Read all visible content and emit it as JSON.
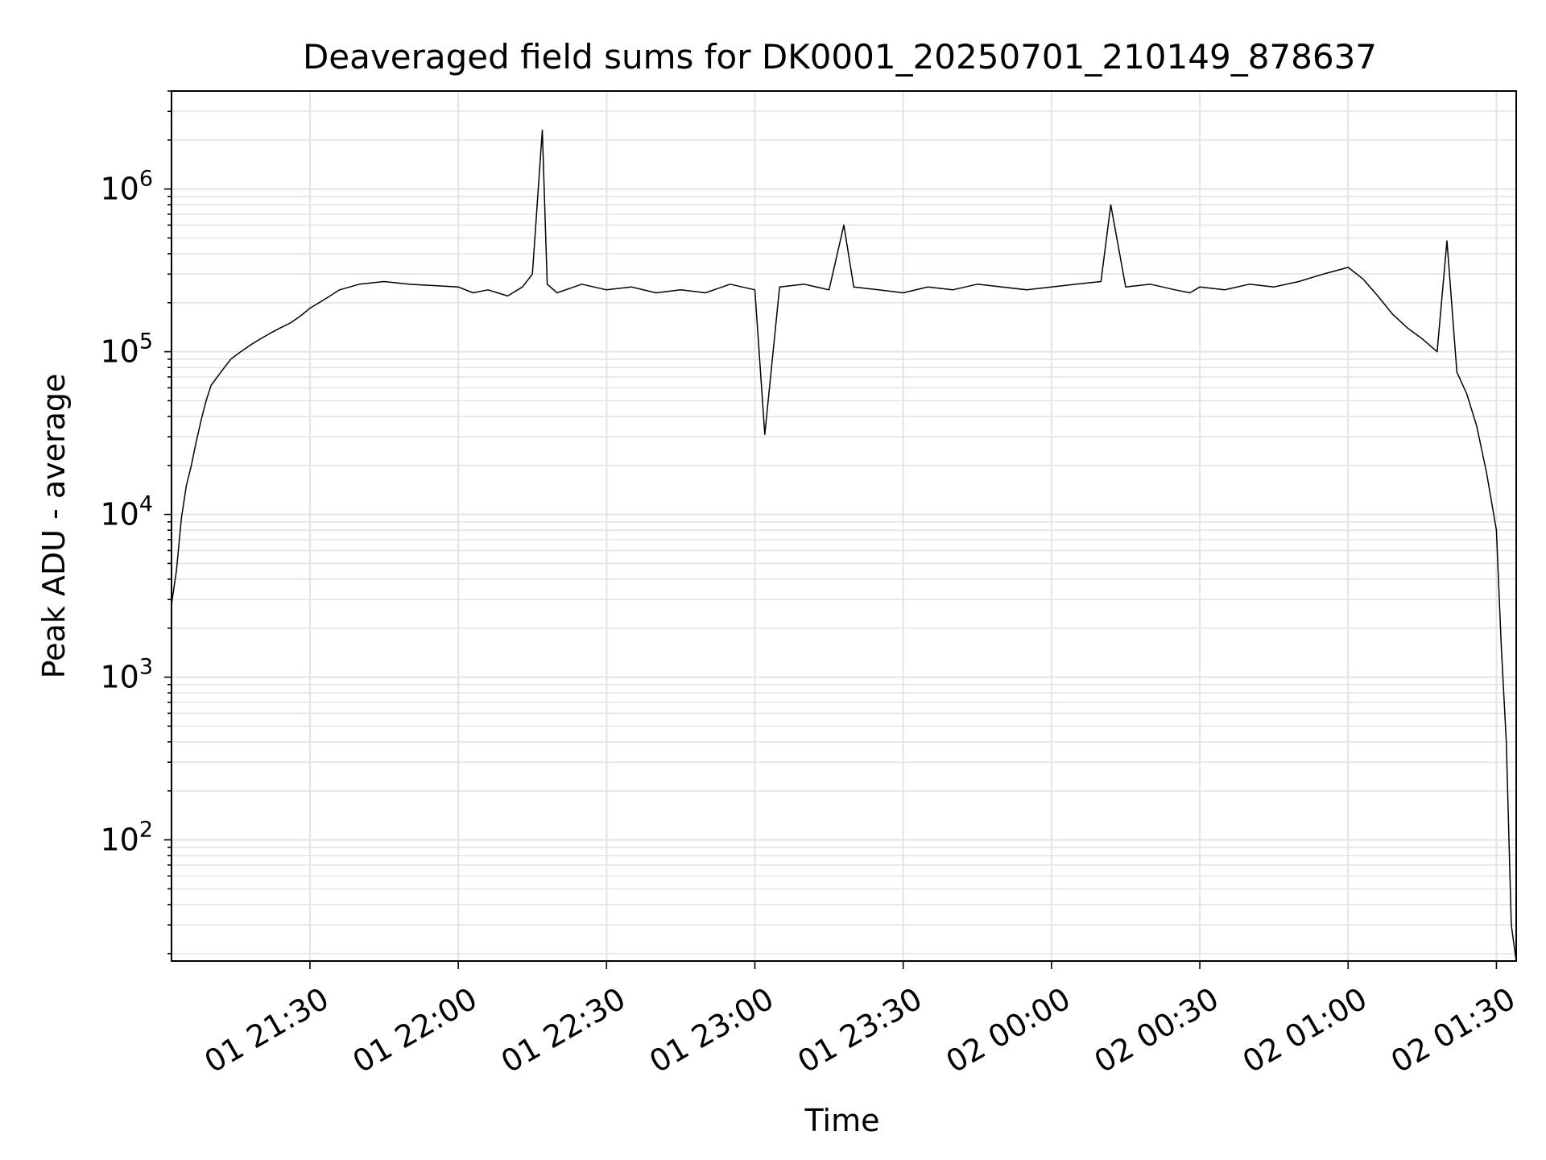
{
  "chart_data": {
    "type": "line",
    "title": "Deaveraged field sums for DK0001_20250701_210149_878637",
    "xlabel": "Time",
    "ylabel": "Peak ADU - average",
    "x_axis": {
      "type": "time",
      "range": [
        "2025-07-01 21:02",
        "2025-07-02 01:34"
      ],
      "ticks": [
        {
          "time": "2025-07-01 21:30",
          "label": "01 21:30"
        },
        {
          "time": "2025-07-01 22:00",
          "label": "01 22:00"
        },
        {
          "time": "2025-07-01 22:30",
          "label": "01 22:30"
        },
        {
          "time": "2025-07-01 23:00",
          "label": "01 23:00"
        },
        {
          "time": "2025-07-01 23:30",
          "label": "01 23:30"
        },
        {
          "time": "2025-07-02 00:00",
          "label": "02 00:00"
        },
        {
          "time": "2025-07-02 00:30",
          "label": "02 00:30"
        },
        {
          "time": "2025-07-02 01:00",
          "label": "02 01:00"
        },
        {
          "time": "2025-07-02 01:30",
          "label": "02 01:30"
        }
      ]
    },
    "y_axis": {
      "scale": "log",
      "range": [
        18,
        4000000
      ],
      "ticks": [
        {
          "value": 100,
          "base": "10",
          "exp": "2"
        },
        {
          "value": 1000,
          "base": "10",
          "exp": "3"
        },
        {
          "value": 10000,
          "base": "10",
          "exp": "4"
        },
        {
          "value": 100000,
          "base": "10",
          "exp": "5"
        },
        {
          "value": 1000000,
          "base": "10",
          "exp": "6"
        }
      ]
    },
    "grid": true,
    "legend": "none",
    "line_color": "#000000",
    "series": [
      {
        "x": [
          "2025-07-01 21:02",
          "2025-07-01 21:03",
          "2025-07-01 21:04",
          "2025-07-01 21:05",
          "2025-07-01 21:06",
          "2025-07-01 21:07",
          "2025-07-01 21:08",
          "2025-07-01 21:09",
          "2025-07-01 21:10",
          "2025-07-01 21:12",
          "2025-07-01 21:14",
          "2025-07-01 21:16",
          "2025-07-01 21:18",
          "2025-07-01 21:20",
          "2025-07-01 21:22",
          "2025-07-01 21:24",
          "2025-07-01 21:26",
          "2025-07-01 21:28",
          "2025-07-01 21:30",
          "2025-07-01 21:33",
          "2025-07-01 21:36",
          "2025-07-01 21:40",
          "2025-07-01 21:45",
          "2025-07-01 21:50",
          "2025-07-01 21:55",
          "2025-07-01 22:00",
          "2025-07-01 22:03",
          "2025-07-01 22:06",
          "2025-07-01 22:10",
          "2025-07-01 22:13",
          "2025-07-01 22:15",
          "2025-07-01 22:17",
          "2025-07-01 22:18",
          "2025-07-01 22:20",
          "2025-07-01 22:25",
          "2025-07-01 22:30",
          "2025-07-01 22:35",
          "2025-07-01 22:40",
          "2025-07-01 22:45",
          "2025-07-01 22:50",
          "2025-07-01 22:55",
          "2025-07-01 23:00",
          "2025-07-01 23:02",
          "2025-07-01 23:05",
          "2025-07-01 23:10",
          "2025-07-01 23:15",
          "2025-07-01 23:18",
          "2025-07-01 23:20",
          "2025-07-01 23:25",
          "2025-07-01 23:30",
          "2025-07-01 23:35",
          "2025-07-01 23:40",
          "2025-07-01 23:45",
          "2025-07-01 23:50",
          "2025-07-01 23:55",
          "2025-07-02 00:00",
          "2025-07-02 00:05",
          "2025-07-02 00:10",
          "2025-07-02 00:12",
          "2025-07-02 00:15",
          "2025-07-02 00:20",
          "2025-07-02 00:25",
          "2025-07-02 00:28",
          "2025-07-02 00:30",
          "2025-07-02 00:35",
          "2025-07-02 00:40",
          "2025-07-02 00:45",
          "2025-07-02 00:50",
          "2025-07-02 00:55",
          "2025-07-02 01:00",
          "2025-07-02 01:03",
          "2025-07-02 01:06",
          "2025-07-02 01:09",
          "2025-07-02 01:12",
          "2025-07-02 01:15",
          "2025-07-02 01:18",
          "2025-07-02 01:20",
          "2025-07-02 01:22",
          "2025-07-02 01:24",
          "2025-07-02 01:26",
          "2025-07-02 01:28",
          "2025-07-02 01:30",
          "2025-07-02 01:31",
          "2025-07-02 01:32",
          "2025-07-02 01:33",
          "2025-07-02 01:34"
        ],
        "y": [
          2800,
          4500,
          9500,
          15000,
          20000,
          28000,
          38000,
          50000,
          62000,
          75000,
          90000,
          100000,
          110000,
          120000,
          130000,
          140000,
          150000,
          165000,
          185000,
          210000,
          240000,
          260000,
          270000,
          260000,
          255000,
          250000,
          230000,
          240000,
          220000,
          250000,
          300000,
          2300000,
          260000,
          230000,
          260000,
          240000,
          250000,
          230000,
          240000,
          230000,
          260000,
          240000,
          31000,
          250000,
          260000,
          240000,
          600000,
          250000,
          240000,
          230000,
          250000,
          240000,
          260000,
          250000,
          240000,
          250000,
          260000,
          270000,
          800000,
          250000,
          260000,
          240000,
          230000,
          250000,
          240000,
          260000,
          250000,
          270000,
          300000,
          330000,
          280000,
          220000,
          170000,
          140000,
          120000,
          100000,
          480000,
          75000,
          55000,
          35000,
          18000,
          8000,
          1500,
          400,
          30,
          18
        ]
      }
    ]
  }
}
